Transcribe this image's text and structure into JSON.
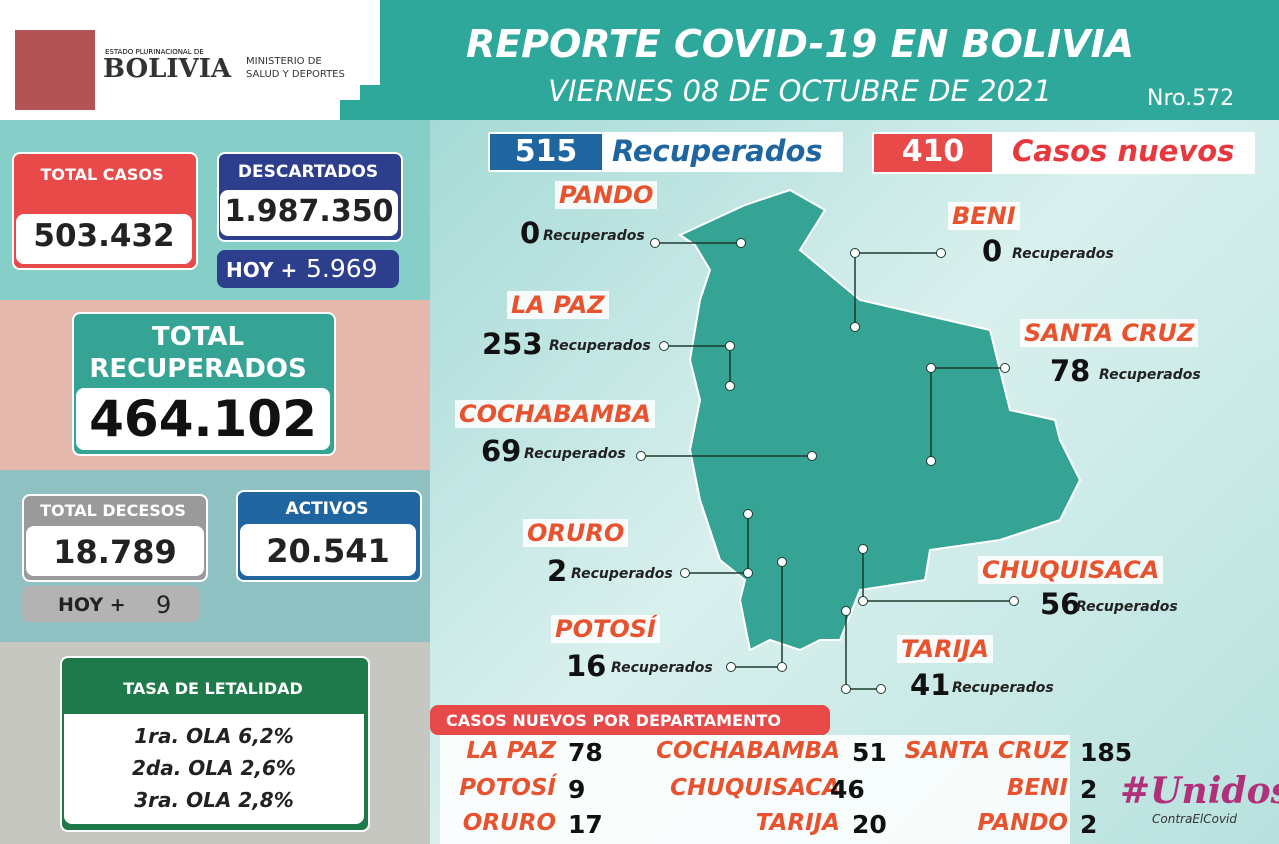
{
  "header": {
    "org_small": "ESTADO PLURINACIONAL DE",
    "org_big": "BOLIVIA",
    "ministry_1": "MINISTERIO DE",
    "ministry_2": "SALUD Y DEPORTES",
    "title": "REPORTE COVID-19 EN BOLIVIA",
    "date": "VIERNES 08 DE OCTUBRE DE 2021",
    "number": "Nro.572"
  },
  "stats": {
    "total_casos": {
      "label": "TOTAL CASOS",
      "value": "503.432"
    },
    "descartados": {
      "label": "DESCARTADOS",
      "value": "1.987.350",
      "today_label": "HOY +",
      "today": "5.969"
    },
    "total_recuperados": {
      "label_1": "TOTAL",
      "label_2": "RECUPERADOS",
      "value": "464.102"
    },
    "decesos": {
      "label": "TOTAL DECESOS",
      "value": "18.789",
      "today_label": "HOY +",
      "today": "9"
    },
    "activos": {
      "label": "ACTIVOS",
      "value": "20.541"
    },
    "letalidad": {
      "title": "TASA DE LETALIDAD",
      "rows": [
        "1ra. OLA 6,2%",
        "2da. OLA 2,6%",
        "3ra. OLA 2,8%"
      ]
    }
  },
  "map": {
    "recuperados": {
      "value": "515",
      "label": "Recuperados"
    },
    "casos_nuevos": {
      "value": "410",
      "label": "Casos nuevos"
    },
    "departments": [
      {
        "name": "PANDO",
        "value": 0,
        "label": "Recuperados"
      },
      {
        "name": "BENI",
        "value": 0,
        "label": "Recuperados"
      },
      {
        "name": "LA PAZ",
        "value": 253,
        "label": "Recuperados"
      },
      {
        "name": "SANTA CRUZ",
        "value": 78,
        "label": "Recuperados"
      },
      {
        "name": "COCHABAMBA",
        "value": 69,
        "label": "Recuperados"
      },
      {
        "name": "ORURO",
        "value": 2,
        "label": "Recuperados"
      },
      {
        "name": "CHUQUISACA",
        "value": 56,
        "label": "Recuperados"
      },
      {
        "name": "POTOSÍ",
        "value": 16,
        "label": "Recuperados"
      },
      {
        "name": "TARIJA",
        "value": 41,
        "label": "Recuperados"
      }
    ]
  },
  "new_cases": {
    "title": "CASOS NUEVOS POR DEPARTAMENTO",
    "entries": [
      {
        "name": "LA PAZ",
        "value": 78
      },
      {
        "name": "COCHABAMBA",
        "value": 51
      },
      {
        "name": "SANTA CRUZ",
        "value": 185
      },
      {
        "name": "POTOSÍ",
        "value": 9
      },
      {
        "name": "CHUQUISACA",
        "value": 46
      },
      {
        "name": "BENI",
        "value": 2
      },
      {
        "name": "ORURO",
        "value": 17
      },
      {
        "name": "TARIJA",
        "value": 20
      },
      {
        "name": "PANDO",
        "value": 2
      }
    ]
  },
  "logo": {
    "main": "#Unidos",
    "sub": "ContraElCovid"
  }
}
